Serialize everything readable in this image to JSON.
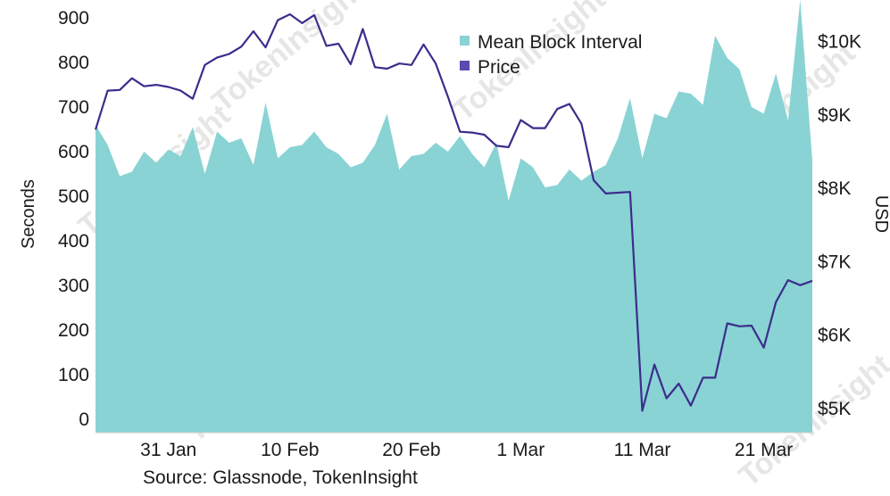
{
  "chart_data": {
    "type": "area+line",
    "title": "",
    "source": "Source: Glassnode, TokenInsight",
    "watermark": "TokenInsight",
    "y_left": {
      "label": "Seconds",
      "ticks": [
        0,
        100,
        200,
        300,
        400,
        500,
        600,
        700,
        800,
        900
      ],
      "tick_labels": [
        "0",
        "100",
        "200",
        "300",
        "400",
        "500",
        "600",
        "700",
        "800",
        "900"
      ]
    },
    "y_right": {
      "label": "USD",
      "ticks": [
        5000,
        6000,
        7000,
        8000,
        9000,
        10000
      ],
      "tick_labels": [
        "$5K",
        "$6K",
        "$7K",
        "$8K",
        "$9K",
        "$10K"
      ]
    },
    "x_ticks": [
      {
        "day": 6,
        "label": "31 Jan"
      },
      {
        "day": 16,
        "label": "10 Feb"
      },
      {
        "day": 26,
        "label": "20 Feb"
      },
      {
        "day": 35,
        "label": "1 Mar"
      },
      {
        "day": 45,
        "label": "11 Mar"
      },
      {
        "day": 55,
        "label": "21 Mar"
      }
    ],
    "legend": [
      {
        "name": "Mean Block Interval",
        "color": "#89d3d4",
        "kind": "area"
      },
      {
        "name": "Price",
        "color": "#3b2d8c",
        "kind": "line"
      }
    ],
    "series": [
      {
        "name": "Mean Block Interval",
        "axis": "left",
        "x_start": "25 Jan",
        "values": [
          660,
          615,
          545,
          555,
          600,
          575,
          605,
          590,
          655,
          550,
          645,
          620,
          630,
          570,
          710,
          585,
          610,
          615,
          645,
          610,
          595,
          565,
          575,
          615,
          685,
          560,
          590,
          595,
          620,
          600,
          635,
          595,
          565,
          620,
          490,
          585,
          565,
          520,
          525,
          560,
          535,
          555,
          570,
          630,
          720,
          585,
          685,
          675,
          735,
          730,
          705,
          860,
          810,
          785,
          700,
          685,
          775,
          670,
          940,
          580
        ],
        "color": "#89d3d4"
      },
      {
        "name": "Price",
        "axis": "right",
        "x_start": "25 Jan",
        "values": [
          8800,
          9330,
          9340,
          9500,
          9390,
          9410,
          9380,
          9330,
          9220,
          9680,
          9780,
          9830,
          9930,
          10140,
          9920,
          10290,
          10370,
          10250,
          10360,
          9940,
          9970,
          9690,
          10170,
          9650,
          9630,
          9700,
          9680,
          9960,
          9700,
          9250,
          8770,
          8760,
          8730,
          8580,
          8560,
          8930,
          8820,
          8820,
          9080,
          9150,
          8880,
          8110,
          7930,
          7940,
          7950,
          4970,
          5600,
          5140,
          5340,
          5040,
          5420,
          5420,
          6160,
          6120,
          6130,
          5830,
          6450,
          6750,
          6680,
          6740
        ]
      }
    ]
  }
}
